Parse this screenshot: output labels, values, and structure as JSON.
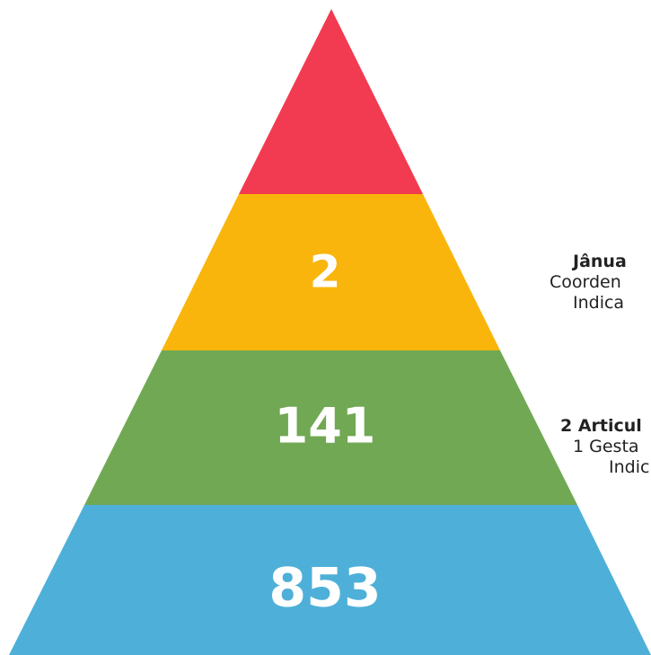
{
  "pyramid": {
    "tiers": [
      {
        "label": "",
        "color": "#F23A50"
      },
      {
        "label": "2",
        "color": "#F9B50B"
      },
      {
        "label": "141",
        "color": "#71A853"
      },
      {
        "label": "853",
        "color": "#4EB0D8"
      }
    ]
  },
  "side_labels": {
    "tier2": {
      "title": "Jânua",
      "line1": "Coorden",
      "line2": "Indica"
    },
    "tier3": {
      "title": "2 Articul",
      "line1": "1 Gesta",
      "line2": "Indic"
    }
  }
}
